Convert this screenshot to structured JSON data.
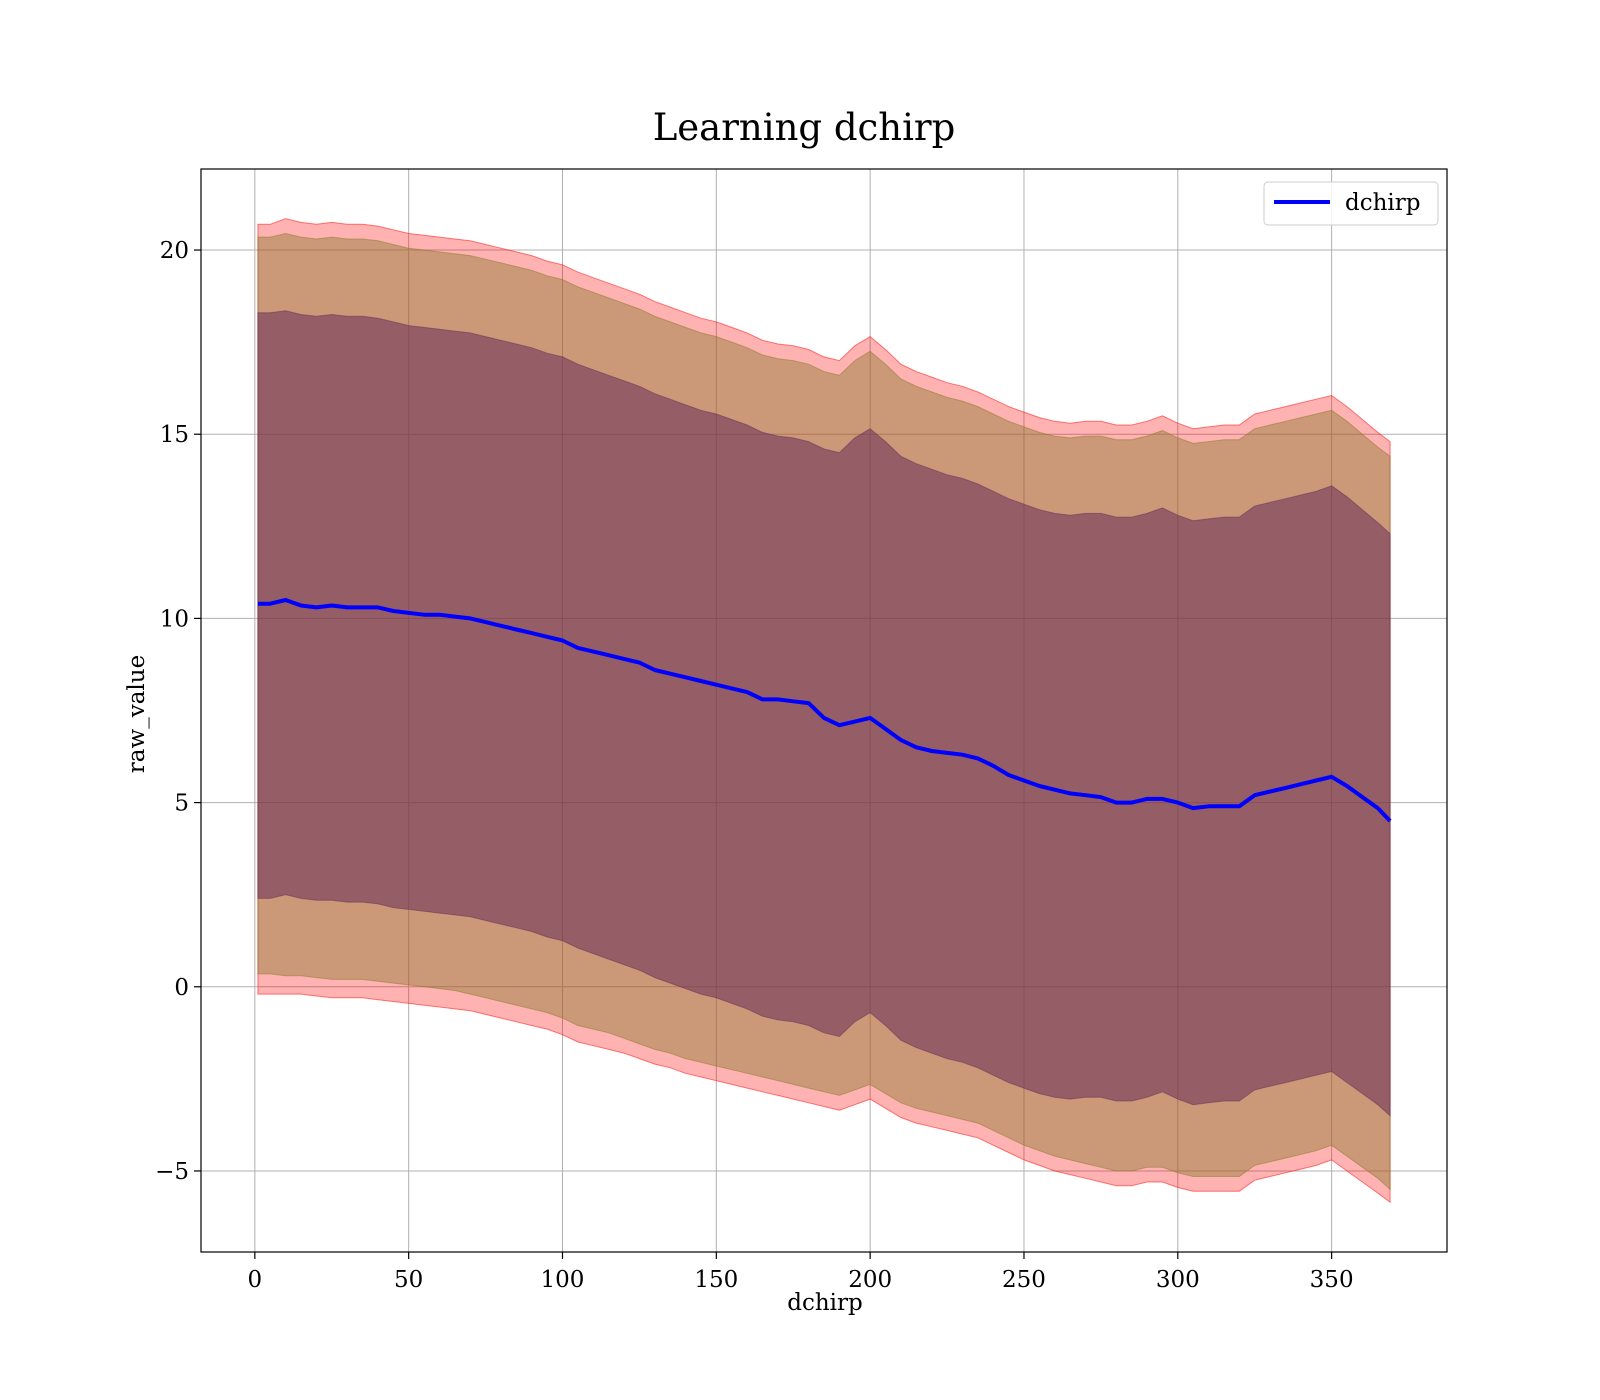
{
  "chart_data": {
    "type": "line",
    "title": "Learning dchirp",
    "xlabel": "dchirp",
    "ylabel": "raw_value",
    "xlim": [
      -17.5,
      387.5
    ],
    "ylim": [
      -7.2,
      22.2
    ],
    "xticks": [
      0,
      50,
      100,
      150,
      200,
      250,
      300,
      350
    ],
    "xtick_labels": [
      "0",
      "50",
      "100",
      "150",
      "200",
      "250",
      "300",
      "350"
    ],
    "yticks": [
      -5,
      0,
      5,
      10,
      15,
      20
    ],
    "ytick_labels": [
      "−5",
      "0",
      "5",
      "10",
      "15",
      "20"
    ],
    "grid": true,
    "legend": {
      "position": "top-right",
      "entries": [
        "dchirp"
      ]
    },
    "colors": {
      "line": "#0000ff",
      "band_outer": "#ff0000",
      "band_mid": "#8b7a2e",
      "band_inner": "#6a2b5a",
      "grid": "#b0b0b0"
    },
    "x": [
      1,
      5,
      10,
      15,
      20,
      25,
      30,
      35,
      40,
      45,
      50,
      55,
      60,
      65,
      70,
      75,
      80,
      85,
      90,
      95,
      100,
      105,
      110,
      115,
      120,
      125,
      130,
      135,
      140,
      145,
      150,
      155,
      160,
      165,
      170,
      175,
      180,
      185,
      190,
      195,
      200,
      205,
      210,
      215,
      220,
      225,
      230,
      235,
      240,
      245,
      250,
      255,
      260,
      265,
      270,
      275,
      280,
      285,
      290,
      295,
      300,
      305,
      310,
      315,
      320,
      325,
      330,
      335,
      340,
      345,
      350,
      355,
      360,
      365,
      369
    ],
    "series": [
      {
        "name": "dchirp",
        "values": [
          10.4,
          10.4,
          10.5,
          10.35,
          10.3,
          10.35,
          10.3,
          10.3,
          10.3,
          10.2,
          10.15,
          10.1,
          10.1,
          10.05,
          10.0,
          9.9,
          9.8,
          9.7,
          9.6,
          9.5,
          9.4,
          9.2,
          9.1,
          9.0,
          8.9,
          8.8,
          8.6,
          8.5,
          8.4,
          8.3,
          8.2,
          8.1,
          8.0,
          7.8,
          7.8,
          7.75,
          7.7,
          7.3,
          7.1,
          7.2,
          7.3,
          7.0,
          6.7,
          6.5,
          6.4,
          6.35,
          6.3,
          6.2,
          6.0,
          5.75,
          5.6,
          5.45,
          5.35,
          5.25,
          5.2,
          5.15,
          5.0,
          5.0,
          5.1,
          5.1,
          5.0,
          4.85,
          4.9,
          4.9,
          4.9,
          5.2,
          5.3,
          5.4,
          5.5,
          5.6,
          5.7,
          5.45,
          5.15,
          4.85,
          4.5
        ]
      }
    ],
    "bands": [
      {
        "lower": [
          -0.2,
          -0.2,
          -0.2,
          -0.2,
          -0.25,
          -0.3,
          -0.3,
          -0.3,
          -0.35,
          -0.4,
          -0.45,
          -0.5,
          -0.55,
          -0.6,
          -0.65,
          -0.75,
          -0.85,
          -0.95,
          -1.05,
          -1.15,
          -1.3,
          -1.5,
          -1.6,
          -1.7,
          -1.8,
          -1.95,
          -2.1,
          -2.2,
          -2.35,
          -2.45,
          -2.55,
          -2.65,
          -2.75,
          -2.85,
          -2.95,
          -3.05,
          -3.15,
          -3.25,
          -3.35,
          -3.2,
          -3.05,
          -3.3,
          -3.55,
          -3.7,
          -3.8,
          -3.9,
          -4.0,
          -4.1,
          -4.3,
          -4.5,
          -4.7,
          -4.85,
          -5.0,
          -5.1,
          -5.2,
          -5.3,
          -5.4,
          -5.4,
          -5.3,
          -5.3,
          -5.45,
          -5.55,
          -5.55,
          -5.55,
          -5.55,
          -5.25,
          -5.15,
          -5.05,
          -4.95,
          -4.85,
          -4.7,
          -5.0,
          -5.3,
          -5.6,
          -5.85
        ],
        "upper": [
          20.7,
          20.7,
          20.85,
          20.75,
          20.7,
          20.75,
          20.7,
          20.7,
          20.65,
          20.55,
          20.45,
          20.4,
          20.35,
          20.3,
          20.25,
          20.15,
          20.05,
          19.95,
          19.85,
          19.7,
          19.6,
          19.4,
          19.25,
          19.1,
          18.95,
          18.8,
          18.6,
          18.45,
          18.3,
          18.15,
          18.05,
          17.9,
          17.75,
          17.55,
          17.45,
          17.4,
          17.3,
          17.1,
          17.0,
          17.4,
          17.65,
          17.3,
          16.9,
          16.7,
          16.55,
          16.4,
          16.3,
          16.15,
          15.95,
          15.75,
          15.6,
          15.45,
          15.35,
          15.3,
          15.35,
          15.35,
          15.25,
          15.25,
          15.35,
          15.5,
          15.3,
          15.15,
          15.2,
          15.25,
          15.25,
          15.55,
          15.65,
          15.75,
          15.85,
          15.95,
          16.05,
          15.75,
          15.4,
          15.05,
          14.8
        ]
      },
      {
        "lower": [
          0.35,
          0.35,
          0.3,
          0.3,
          0.25,
          0.2,
          0.2,
          0.2,
          0.15,
          0.1,
          0.05,
          0.0,
          -0.05,
          -0.1,
          -0.2,
          -0.3,
          -0.4,
          -0.5,
          -0.6,
          -0.7,
          -0.85,
          -1.05,
          -1.15,
          -1.25,
          -1.4,
          -1.55,
          -1.7,
          -1.8,
          -1.95,
          -2.05,
          -2.15,
          -2.25,
          -2.35,
          -2.45,
          -2.55,
          -2.65,
          -2.75,
          -2.85,
          -2.95,
          -2.8,
          -2.65,
          -2.9,
          -3.15,
          -3.3,
          -3.4,
          -3.5,
          -3.6,
          -3.7,
          -3.9,
          -4.1,
          -4.3,
          -4.45,
          -4.6,
          -4.7,
          -4.8,
          -4.9,
          -5.0,
          -5.0,
          -4.9,
          -4.9,
          -5.05,
          -5.15,
          -5.15,
          -5.15,
          -5.15,
          -4.85,
          -4.75,
          -4.65,
          -4.55,
          -4.45,
          -4.3,
          -4.6,
          -4.9,
          -5.2,
          -5.5
        ],
        "upper": [
          20.35,
          20.35,
          20.45,
          20.35,
          20.3,
          20.35,
          20.3,
          20.3,
          20.25,
          20.15,
          20.05,
          20.0,
          19.95,
          19.9,
          19.85,
          19.75,
          19.65,
          19.55,
          19.45,
          19.3,
          19.2,
          19.0,
          18.85,
          18.7,
          18.55,
          18.4,
          18.2,
          18.05,
          17.9,
          17.75,
          17.65,
          17.5,
          17.35,
          17.15,
          17.05,
          17.0,
          16.9,
          16.7,
          16.6,
          17.0,
          17.25,
          16.9,
          16.5,
          16.3,
          16.15,
          16.0,
          15.9,
          15.75,
          15.55,
          15.35,
          15.2,
          15.05,
          14.95,
          14.9,
          14.95,
          14.95,
          14.85,
          14.85,
          14.95,
          15.1,
          14.9,
          14.75,
          14.8,
          14.85,
          14.85,
          15.15,
          15.25,
          15.35,
          15.45,
          15.55,
          15.65,
          15.35,
          15.0,
          14.65,
          14.4
        ]
      },
      {
        "lower": [
          2.4,
          2.4,
          2.5,
          2.4,
          2.35,
          2.35,
          2.3,
          2.3,
          2.25,
          2.15,
          2.1,
          2.05,
          2.0,
          1.95,
          1.9,
          1.8,
          1.7,
          1.6,
          1.5,
          1.35,
          1.25,
          1.05,
          0.9,
          0.75,
          0.6,
          0.45,
          0.25,
          0.1,
          -0.05,
          -0.2,
          -0.3,
          -0.45,
          -0.6,
          -0.8,
          -0.9,
          -0.95,
          -1.05,
          -1.25,
          -1.35,
          -0.95,
          -0.7,
          -1.05,
          -1.45,
          -1.65,
          -1.8,
          -1.95,
          -2.05,
          -2.2,
          -2.4,
          -2.6,
          -2.75,
          -2.9,
          -3.0,
          -3.05,
          -3.0,
          -3.0,
          -3.1,
          -3.1,
          -3.0,
          -2.85,
          -3.05,
          -3.2,
          -3.15,
          -3.1,
          -3.1,
          -2.8,
          -2.7,
          -2.6,
          -2.5,
          -2.4,
          -2.3,
          -2.6,
          -2.9,
          -3.2,
          -3.5
        ],
        "upper": [
          18.3,
          18.3,
          18.35,
          18.25,
          18.2,
          18.25,
          18.2,
          18.2,
          18.15,
          18.05,
          17.95,
          17.9,
          17.85,
          17.8,
          17.75,
          17.65,
          17.55,
          17.45,
          17.35,
          17.2,
          17.1,
          16.9,
          16.75,
          16.6,
          16.45,
          16.3,
          16.1,
          15.95,
          15.8,
          15.65,
          15.55,
          15.4,
          15.25,
          15.05,
          14.95,
          14.9,
          14.8,
          14.6,
          14.5,
          14.9,
          15.15,
          14.8,
          14.4,
          14.2,
          14.05,
          13.9,
          13.8,
          13.65,
          13.45,
          13.25,
          13.1,
          12.95,
          12.85,
          12.8,
          12.85,
          12.85,
          12.75,
          12.75,
          12.85,
          13.0,
          12.8,
          12.65,
          12.7,
          12.75,
          12.75,
          13.05,
          13.15,
          13.25,
          13.35,
          13.45,
          13.6,
          13.3,
          12.95,
          12.6,
          12.3
        ]
      }
    ]
  }
}
